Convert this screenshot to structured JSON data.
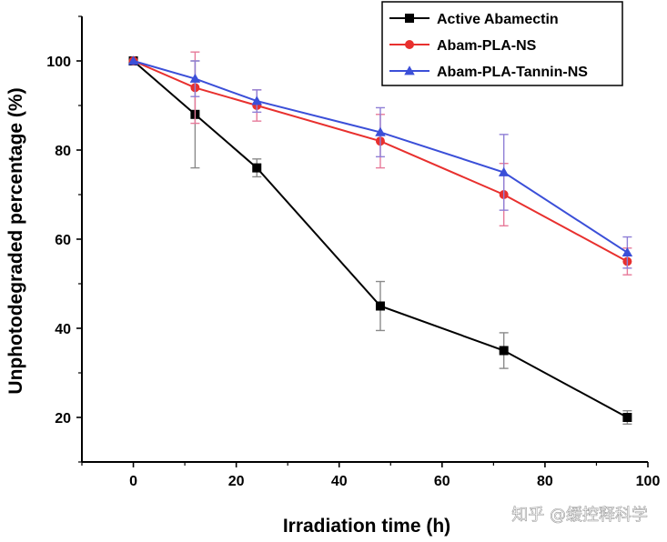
{
  "chart_data": {
    "type": "line",
    "title": "",
    "xlabel": "Irradiation time (h)",
    "ylabel": "Unphotodegraded percentage (%)",
    "xlim": [
      -10,
      100
    ],
    "ylim": [
      10,
      110
    ],
    "xticks": [
      0,
      20,
      40,
      60,
      80,
      100
    ],
    "yticks": [
      20,
      40,
      60,
      80,
      100
    ],
    "x": [
      0,
      12,
      24,
      48,
      72,
      96
    ],
    "grid": false,
    "legend_position": "top-right",
    "series": [
      {
        "name": "Active Abamectin",
        "color": "#000000",
        "marker": "square",
        "errcolor": "#8a8a8a",
        "values": [
          100,
          88,
          76,
          45,
          35,
          20
        ],
        "errors": [
          0.5,
          12,
          2,
          5.5,
          4,
          1.5
        ]
      },
      {
        "name": "Abam-PLA-NS",
        "color": "#e8302e",
        "marker": "circle",
        "errcolor": "#e77a9a",
        "values": [
          100,
          94,
          90,
          82,
          70,
          55
        ],
        "errors": [
          0.5,
          8,
          3.5,
          6,
          7,
          3
        ]
      },
      {
        "name": "Abam-PLA-Tannin-NS",
        "color": "#3b4fd8",
        "marker": "triangle",
        "errcolor": "#8f7fd6",
        "values": [
          100,
          96,
          91,
          84,
          75,
          57
        ],
        "errors": [
          0.5,
          4,
          2.5,
          5.5,
          8.5,
          3.5
        ]
      }
    ]
  },
  "watermark": "知乎 @缓控释科学"
}
